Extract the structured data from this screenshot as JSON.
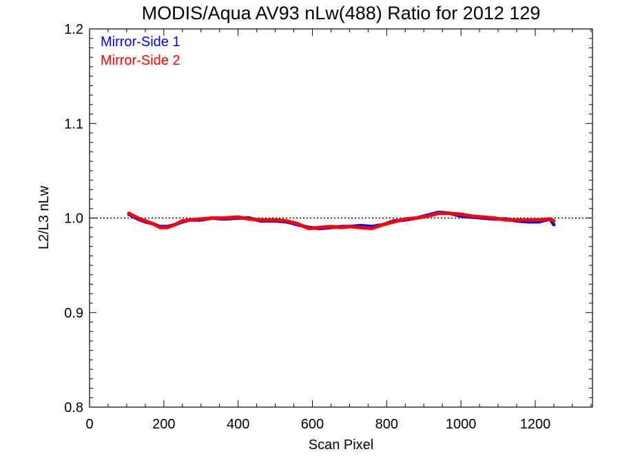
{
  "chart_data": {
    "type": "line",
    "title": "MODIS/Aqua AV93 nLw(488) Ratio for 2012 129",
    "xlabel": "Scan Pixel",
    "ylabel": "L2/L3 nLw",
    "xlim": [
      0,
      1354
    ],
    "ylim": [
      0.8,
      1.2
    ],
    "x_ticks": [
      "0",
      "200",
      "400",
      "600",
      "800",
      "1000",
      "1200"
    ],
    "y_ticks": [
      "0.8",
      "0.9",
      "1.0",
      "1.1",
      "1.2"
    ],
    "reference_line": 1.0,
    "legend_position": "top-left",
    "x": [
      106,
      130,
      150,
      170,
      190,
      210,
      230,
      250,
      270,
      300,
      330,
      360,
      400,
      430,
      460,
      500,
      530,
      560,
      590,
      620,
      650,
      680,
      700,
      730,
      760,
      790,
      820,
      850,
      880,
      910,
      940,
      970,
      1000,
      1030,
      1060,
      1090,
      1120,
      1150,
      1180,
      1210,
      1240,
      1250
    ],
    "series": [
      {
        "name": "Mirror-Side 1",
        "color": "#0000ff",
        "values": [
          1.004,
          0.999,
          0.996,
          0.994,
          0.991,
          0.991,
          0.993,
          0.996,
          0.998,
          0.998,
          1.0,
          0.999,
          1.0,
          1.0,
          0.997,
          0.997,
          0.996,
          0.993,
          0.99,
          0.989,
          0.99,
          0.991,
          0.991,
          0.992,
          0.991,
          0.993,
          0.997,
          0.998,
          1.0,
          1.003,
          1.006,
          1.005,
          1.002,
          1.001,
          1.0,
          0.999,
          0.999,
          0.997,
          0.996,
          0.996,
          0.999,
          0.993
        ]
      },
      {
        "name": "Mirror-Side 2",
        "color": "#ff0000",
        "values": [
          1.005,
          1.0,
          0.997,
          0.994,
          0.99,
          0.99,
          0.993,
          0.997,
          0.998,
          0.999,
          1.0,
          1.0,
          1.001,
          0.999,
          0.998,
          0.998,
          0.997,
          0.994,
          0.989,
          0.99,
          0.991,
          0.99,
          0.991,
          0.99,
          0.989,
          0.993,
          0.996,
          0.999,
          1.0,
          1.002,
          1.005,
          1.005,
          1.004,
          1.002,
          1.001,
          1.0,
          0.998,
          0.998,
          0.998,
          0.998,
          0.999,
          0.997
        ]
      }
    ]
  }
}
